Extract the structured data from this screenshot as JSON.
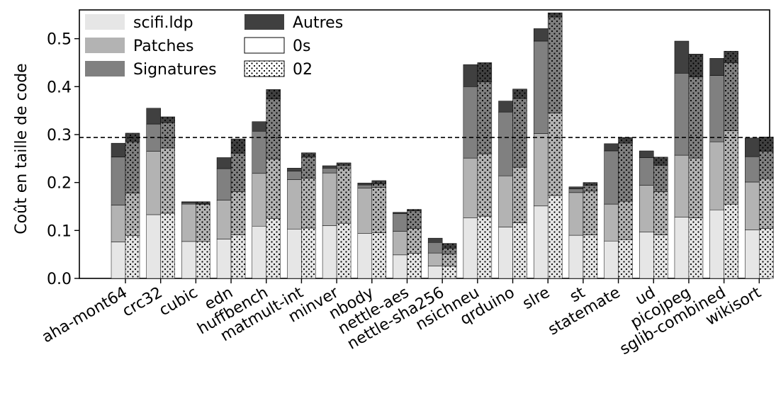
{
  "chart_data": {
    "type": "bar",
    "stacked": true,
    "ylabel": "Coût en taille de code",
    "xlabel": "",
    "ylim": [
      0,
      0.56
    ],
    "yticks": [
      "0.0",
      "0.1",
      "0.2",
      "0.3",
      "0.4",
      "0.5"
    ],
    "reference_line": 0.294,
    "legend_position": "top-left",
    "categories": [
      "aha-mont64",
      "crc32",
      "cubic",
      "edn",
      "huffbench",
      "matmult-int",
      "minver",
      "nbody",
      "nettle-aes",
      "nettle-sha256",
      "nsichneu",
      "qrduino",
      "slre",
      "st",
      "statemate",
      "ud",
      "picojpeg",
      "sglib-combined",
      "wikisort"
    ],
    "components": [
      {
        "name": "scifi.ldp",
        "color": "#e6e6e6"
      },
      {
        "name": "Patches",
        "color": "#b3b3b3"
      },
      {
        "name": "Signatures",
        "color": "#808080"
      },
      {
        "name": "Autres",
        "color": "#404040"
      }
    ],
    "variants": [
      {
        "name": "0s",
        "pattern": "none"
      },
      {
        "name": "02",
        "pattern": "dots"
      }
    ],
    "series": [
      {
        "name": "0s",
        "values": [
          [
            0.076,
            0.077,
            0.1,
            0.029
          ],
          [
            0.133,
            0.132,
            0.057,
            0.033
          ],
          [
            0.077,
            0.078,
            0.002,
            0.003
          ],
          [
            0.082,
            0.081,
            0.066,
            0.023
          ],
          [
            0.109,
            0.11,
            0.088,
            0.02
          ],
          [
            0.103,
            0.103,
            0.018,
            0.006
          ],
          [
            0.11,
            0.11,
            0.01,
            0.005
          ],
          [
            0.094,
            0.094,
            0.007,
            0.004
          ],
          [
            0.049,
            0.049,
            0.037,
            0.003
          ],
          [
            0.026,
            0.027,
            0.022,
            0.009
          ],
          [
            0.126,
            0.125,
            0.149,
            0.046
          ],
          [
            0.107,
            0.107,
            0.133,
            0.023
          ],
          [
            0.151,
            0.151,
            0.193,
            0.026
          ],
          [
            0.09,
            0.089,
            0.008,
            0.004
          ],
          [
            0.078,
            0.077,
            0.111,
            0.015
          ],
          [
            0.097,
            0.097,
            0.058,
            0.014
          ],
          [
            0.128,
            0.129,
            0.171,
            0.067
          ],
          [
            0.143,
            0.142,
            0.138,
            0.036
          ],
          [
            0.101,
            0.1,
            0.053,
            0.039
          ]
        ]
      },
      {
        "name": "02",
        "values": [
          [
            0.089,
            0.089,
            0.107,
            0.018
          ],
          [
            0.136,
            0.136,
            0.053,
            0.012
          ],
          [
            0.077,
            0.077,
            0.002,
            0.004
          ],
          [
            0.091,
            0.09,
            0.08,
            0.03
          ],
          [
            0.125,
            0.124,
            0.125,
            0.02
          ],
          [
            0.105,
            0.104,
            0.044,
            0.009
          ],
          [
            0.115,
            0.114,
            0.007,
            0.005
          ],
          [
            0.095,
            0.095,
            0.007,
            0.007
          ],
          [
            0.052,
            0.052,
            0.037,
            0.003
          ],
          [
            0.026,
            0.025,
            0.012,
            0.01
          ],
          [
            0.13,
            0.13,
            0.15,
            0.04
          ],
          [
            0.116,
            0.116,
            0.143,
            0.02
          ],
          [
            0.173,
            0.172,
            0.2,
            0.009
          ],
          [
            0.091,
            0.091,
            0.012,
            0.006
          ],
          [
            0.081,
            0.08,
            0.121,
            0.012
          ],
          [
            0.091,
            0.09,
            0.055,
            0.017
          ],
          [
            0.126,
            0.125,
            0.169,
            0.048
          ],
          [
            0.155,
            0.153,
            0.142,
            0.024
          ],
          [
            0.104,
            0.104,
            0.057,
            0.03
          ]
        ]
      }
    ]
  }
}
